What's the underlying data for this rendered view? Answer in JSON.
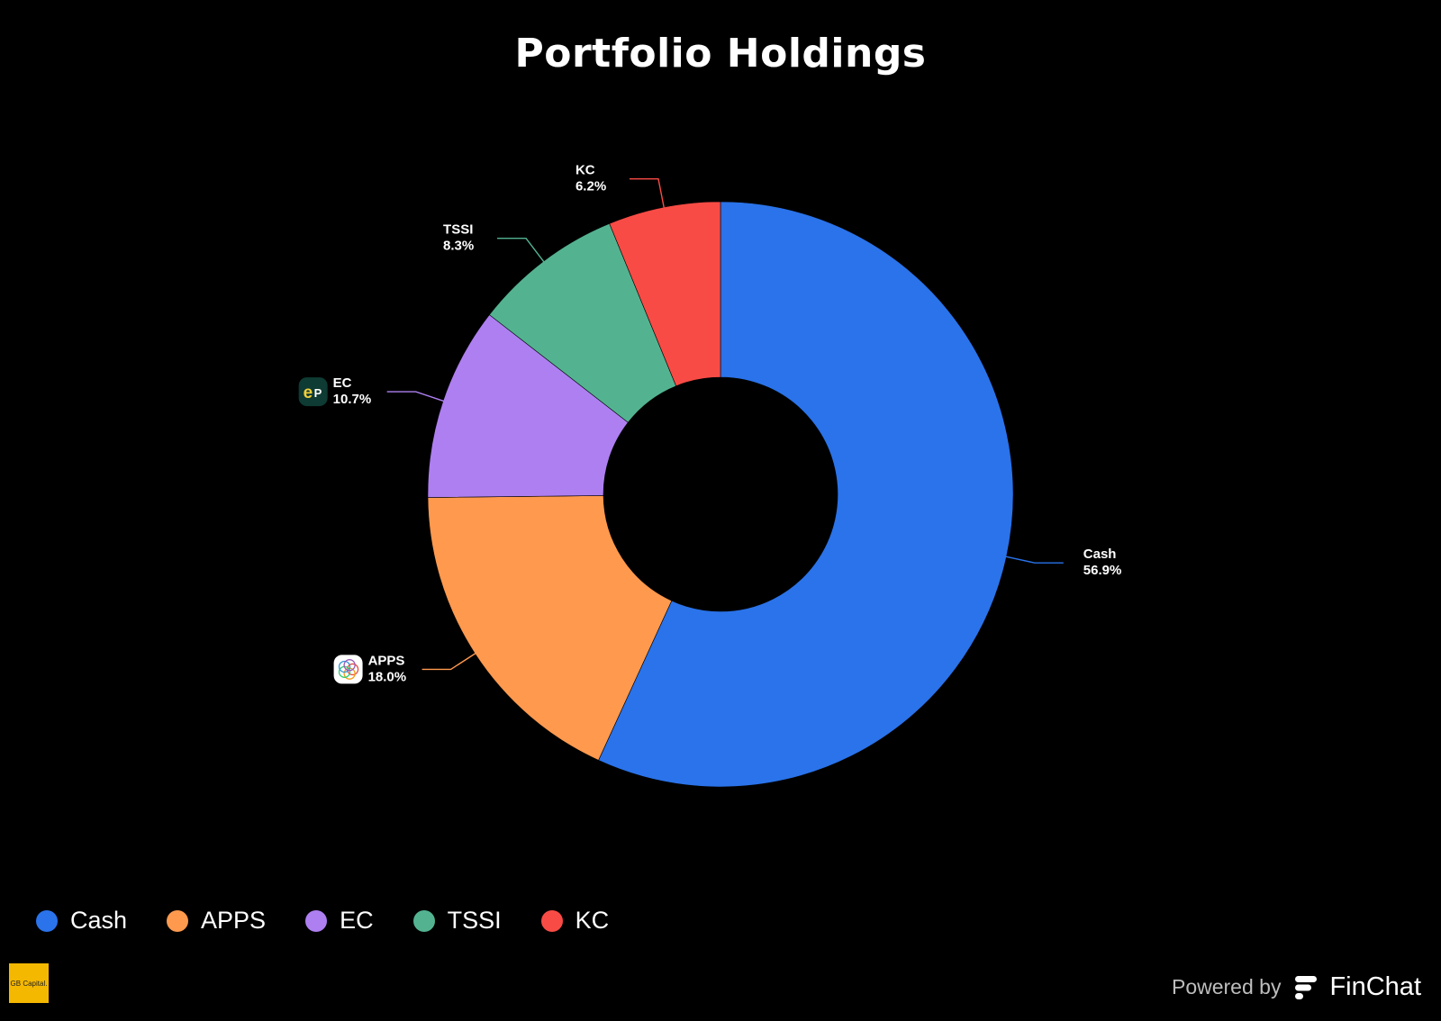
{
  "chart_data": {
    "type": "pie",
    "title": "Portfolio Holdings",
    "donut": true,
    "slices": [
      {
        "name": "Cash",
        "value": 56.9,
        "label": "56.9%",
        "color": "#2a73ea",
        "icon": ""
      },
      {
        "name": "APPS",
        "value": 18.0,
        "label": "18.0%",
        "color": "#ff994e",
        "icon": "apps-logo-icon"
      },
      {
        "name": "EC",
        "value": 10.7,
        "label": "10.7%",
        "color": "#ae7ff1",
        "icon": "ec-logo-icon"
      },
      {
        "name": "TSSI",
        "value": 8.3,
        "label": "8.3%",
        "color": "#53b391",
        "icon": ""
      },
      {
        "name": "KC",
        "value": 6.2,
        "label": "6.2%",
        "color": "#f94b45",
        "icon": ""
      }
    ],
    "legend_position": "bottom-left"
  },
  "footer": {
    "logo_text": "GB Capital.",
    "powered_by": "Powered by",
    "brand": "FinChat"
  },
  "colors": {
    "background": "#000000",
    "text": "#ffffff"
  }
}
